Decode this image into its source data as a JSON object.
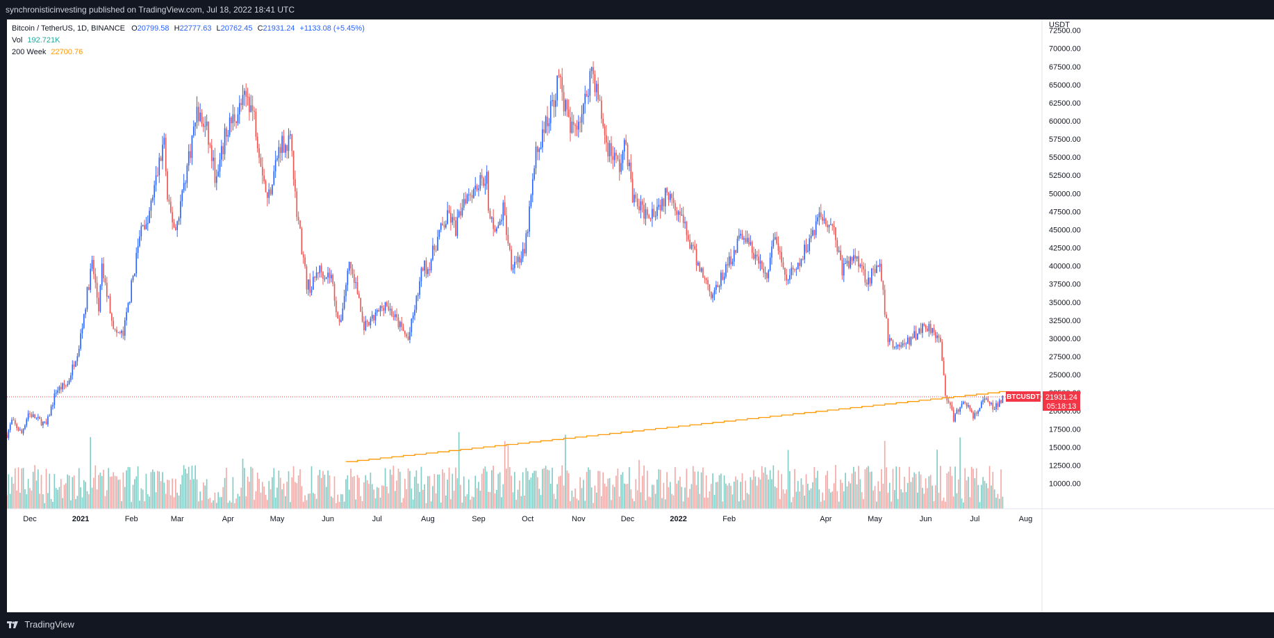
{
  "header": {
    "published": "synchronisticinvesting published on TradingView.com, Jul 18, 2022 18:41 UTC"
  },
  "footer": {
    "brand": "TradingView"
  },
  "legend": {
    "symbol": "Bitcoin / TetherUS, 1D, BINANCE",
    "o_label": "O",
    "o": "20799.58",
    "h_label": "H",
    "h": "22777.63",
    "l_label": "L",
    "l": "20762.45",
    "c_label": "C",
    "c": "21931.24",
    "change": "+1133.08 (+5.45%)",
    "vol_label": "Vol",
    "vol": "192.721K",
    "ma_label": "200 Week",
    "ma": "22700.76"
  },
  "colors": {
    "up": "#2962ff",
    "down": "#ef5350",
    "vol_up": "#80cbc4",
    "vol_down": "#f4a8a5",
    "ma": "#ff9800",
    "price_tag": "#f23645"
  },
  "chart_data": {
    "type": "candlestick",
    "symbol_tag": "BTCUSDT",
    "last_price": "21931.24",
    "countdown": "05:18:13",
    "last_value": 21931.24,
    "currency_label": "USDT",
    "y_ticks": [
      "72500.00",
      "70000.00",
      "67500.00",
      "65000.00",
      "62500.00",
      "60000.00",
      "57500.00",
      "55000.00",
      "52500.00",
      "50000.00",
      "47500.00",
      "45000.00",
      "42500.00",
      "40000.00",
      "37500.00",
      "35000.00",
      "32500.00",
      "30000.00",
      "27500.00",
      "25000.00",
      "22500.00",
      "20000.00",
      "17500.00",
      "15000.00",
      "12500.00",
      "10000.00"
    ],
    "y_tick_values": [
      72500,
      70000,
      67500,
      65000,
      62500,
      60000,
      57500,
      55000,
      52500,
      50000,
      47500,
      45000,
      42500,
      40000,
      37500,
      35000,
      32500,
      30000,
      27500,
      25000,
      22500,
      20000,
      17500,
      15000,
      12500,
      10000
    ],
    "ylim": [
      6500,
      74000
    ],
    "x_labels": [
      {
        "date": "2020-12-01",
        "label": "Dec"
      },
      {
        "date": "2021-01-01",
        "label": "2021"
      },
      {
        "date": "2021-02-01",
        "label": "Feb"
      },
      {
        "date": "2021-03-01",
        "label": "Mar"
      },
      {
        "date": "2021-04-01",
        "label": "Apr"
      },
      {
        "date": "2021-05-01",
        "label": "May"
      },
      {
        "date": "2021-06-01",
        "label": "Jun"
      },
      {
        "date": "2021-07-01",
        "label": "Jul"
      },
      {
        "date": "2021-08-01",
        "label": "Aug"
      },
      {
        "date": "2021-09-01",
        "label": "Sep"
      },
      {
        "date": "2021-10-01",
        "label": "Oct"
      },
      {
        "date": "2021-11-01",
        "label": "Nov"
      },
      {
        "date": "2021-12-01",
        "label": "Dec"
      },
      {
        "date": "2022-01-01",
        "label": "2022"
      },
      {
        "date": "2022-02-01",
        "label": "Feb"
      },
      {
        "date": "2022-04-01",
        "label": "Apr"
      },
      {
        "date": "2022-05-01",
        "label": "May"
      },
      {
        "date": "2022-06-01",
        "label": "Jun"
      },
      {
        "date": "2022-07-01",
        "label": "Jul"
      },
      {
        "date": "2022-08-01",
        "label": "Aug"
      }
    ],
    "xlim": [
      "2020-11-17",
      "2022-08-11"
    ],
    "close_path": [
      [
        "2020-11-17",
        16700
      ],
      [
        "2020-11-20",
        18600
      ],
      [
        "2020-11-26",
        16900
      ],
      [
        "2020-11-30",
        19700
      ],
      [
        "2020-12-11",
        18000
      ],
      [
        "2020-12-17",
        22800
      ],
      [
        "2020-12-24",
        23700
      ],
      [
        "2020-12-31",
        29000
      ],
      [
        "2021-01-08",
        40500
      ],
      [
        "2021-01-12",
        34000
      ],
      [
        "2021-01-14",
        39500
      ],
      [
        "2021-01-22",
        30800
      ],
      [
        "2021-01-27",
        30500
      ],
      [
        "2021-02-08",
        46500
      ],
      [
        "2021-02-10",
        45000
      ],
      [
        "2021-02-21",
        57500
      ],
      [
        "2021-02-23",
        48500
      ],
      [
        "2021-02-28",
        45000
      ],
      [
        "2021-03-13",
        61200
      ],
      [
        "2021-03-19",
        58500
      ],
      [
        "2021-03-25",
        51500
      ],
      [
        "2021-03-31",
        58800
      ],
      [
        "2021-04-13",
        63500
      ],
      [
        "2021-04-17",
        60500
      ],
      [
        "2021-04-25",
        49000
      ],
      [
        "2021-05-03",
        57000
      ],
      [
        "2021-05-10",
        57000
      ],
      [
        "2021-05-12",
        49500
      ],
      [
        "2021-05-19",
        37500
      ],
      [
        "2021-05-22",
        37000
      ],
      [
        "2021-05-26",
        39500
      ],
      [
        "2021-06-03",
        38500
      ],
      [
        "2021-06-08",
        31500
      ],
      [
        "2021-06-14",
        40500
      ],
      [
        "2021-06-20",
        35500
      ],
      [
        "2021-06-22",
        32000
      ],
      [
        "2021-06-25",
        31500
      ],
      [
        "2021-07-06",
        35000
      ],
      [
        "2021-07-20",
        29800
      ],
      [
        "2021-07-25",
        35200
      ],
      [
        "2021-07-29",
        40000
      ],
      [
        "2021-08-01",
        39700
      ],
      [
        "2021-08-08",
        44500
      ],
      [
        "2021-08-14",
        47000
      ],
      [
        "2021-08-18",
        45000
      ],
      [
        "2021-08-23",
        49500
      ],
      [
        "2021-09-06",
        52500
      ],
      [
        "2021-09-07",
        46800
      ],
      [
        "2021-09-13",
        44900
      ],
      [
        "2021-09-16",
        48000
      ],
      [
        "2021-09-21",
        40500
      ],
      [
        "2021-09-29",
        41500
      ],
      [
        "2021-10-06",
        55300
      ],
      [
        "2021-10-15",
        61500
      ],
      [
        "2021-10-20",
        66000
      ],
      [
        "2021-10-27",
        58500
      ],
      [
        "2021-11-04",
        61500
      ],
      [
        "2021-11-09",
        67500
      ],
      [
        "2021-11-12",
        64300
      ],
      [
        "2021-11-18",
        56900
      ],
      [
        "2021-11-26",
        53700
      ],
      [
        "2021-11-30",
        57000
      ],
      [
        "2021-12-04",
        49500
      ],
      [
        "2021-12-10",
        47500
      ],
      [
        "2021-12-16",
        47600
      ],
      [
        "2021-12-22",
        48900
      ],
      [
        "2021-12-27",
        50600
      ],
      [
        "2022-01-03",
        46400
      ],
      [
        "2022-01-10",
        41800
      ],
      [
        "2022-01-21",
        36300
      ],
      [
        "2022-01-24",
        36700
      ],
      [
        "2022-02-09",
        44500
      ],
      [
        "2022-02-14",
        42500
      ],
      [
        "2022-02-24",
        38300
      ],
      [
        "2022-03-01",
        44400
      ],
      [
        "2022-03-07",
        38000
      ],
      [
        "2022-03-15",
        39600
      ],
      [
        "2022-03-28",
        47100
      ],
      [
        "2022-04-05",
        45800
      ],
      [
        "2022-04-11",
        39500
      ],
      [
        "2022-04-20",
        41500
      ],
      [
        "2022-04-26",
        38100
      ],
      [
        "2022-05-04",
        39700
      ],
      [
        "2022-05-09",
        30100
      ],
      [
        "2022-05-12",
        29000
      ],
      [
        "2022-05-20",
        29200
      ],
      [
        "2022-05-31",
        31800
      ],
      [
        "2022-06-06",
        31300
      ],
      [
        "2022-06-10",
        29100
      ],
      [
        "2022-06-13",
        22500
      ],
      [
        "2022-06-18",
        19000
      ],
      [
        "2022-06-25",
        21500
      ],
      [
        "2022-06-30",
        19000
      ],
      [
        "2022-07-07",
        21600
      ],
      [
        "2022-07-13",
        20200
      ],
      [
        "2022-07-18",
        21931
      ]
    ],
    "ma200w_path": [
      [
        "2021-06-12",
        13000
      ],
      [
        "2022-07-18",
        22700.76
      ]
    ]
  }
}
